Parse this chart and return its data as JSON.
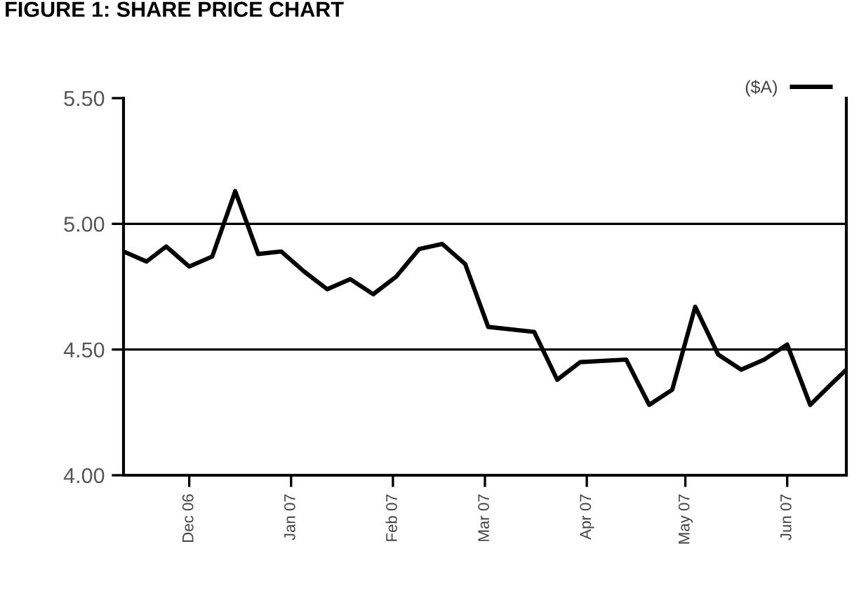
{
  "chart_data": {
    "type": "line",
    "title": "FIGURE 1: SHARE PRICE CHART",
    "x": [
      "2006-11-11",
      "2006-11-18",
      "2006-11-24",
      "2006-12-01",
      "2006-12-08",
      "2006-12-15",
      "2006-12-22",
      "2006-12-29",
      "2007-01-05",
      "2007-01-12",
      "2007-01-19",
      "2007-01-26",
      "2007-02-02",
      "2007-02-09",
      "2007-02-16",
      "2007-02-23",
      "2007-03-02",
      "2007-03-16",
      "2007-03-23",
      "2007-03-30",
      "2007-04-13",
      "2007-04-20",
      "2007-04-27",
      "2007-05-04",
      "2007-05-11",
      "2007-05-18",
      "2007-05-25",
      "2007-06-01",
      "2007-06-08",
      "2007-06-15",
      "2007-06-19"
    ],
    "series": [
      {
        "name": "($A)",
        "color": "#000000",
        "values": [
          4.89,
          4.85,
          4.91,
          4.83,
          4.87,
          5.13,
          4.88,
          4.89,
          4.81,
          4.74,
          4.78,
          4.72,
          4.79,
          4.9,
          4.92,
          4.84,
          4.59,
          4.57,
          4.38,
          4.45,
          4.46,
          4.28,
          4.34,
          4.67,
          4.48,
          4.42,
          4.46,
          4.52,
          4.28,
          4.37,
          4.42
        ]
      }
    ],
    "xlim": [
      "2006-11-11",
      "2007-06-19"
    ],
    "xticks": [
      {
        "value": "2006-12-01",
        "label": "Dec 06"
      },
      {
        "value": "2007-01-01",
        "label": "Jan 07"
      },
      {
        "value": "2007-02-01",
        "label": "Feb 07"
      },
      {
        "value": "2007-03-01",
        "label": "Mar 07"
      },
      {
        "value": "2007-04-01",
        "label": "Apr 07"
      },
      {
        "value": "2007-05-01",
        "label": "May 07"
      },
      {
        "value": "2007-06-01",
        "label": "Jun 07"
      }
    ],
    "ylim": [
      4.0,
      5.5
    ],
    "yticks": [
      {
        "value": 4.0,
        "label": "4.00"
      },
      {
        "value": 4.5,
        "label": "4.50"
      },
      {
        "value": 5.0,
        "label": "5.00"
      },
      {
        "value": 5.5,
        "label": "5.50"
      }
    ],
    "grid": "y",
    "legend": "top right",
    "marker": "none",
    "line_style": "solid"
  }
}
